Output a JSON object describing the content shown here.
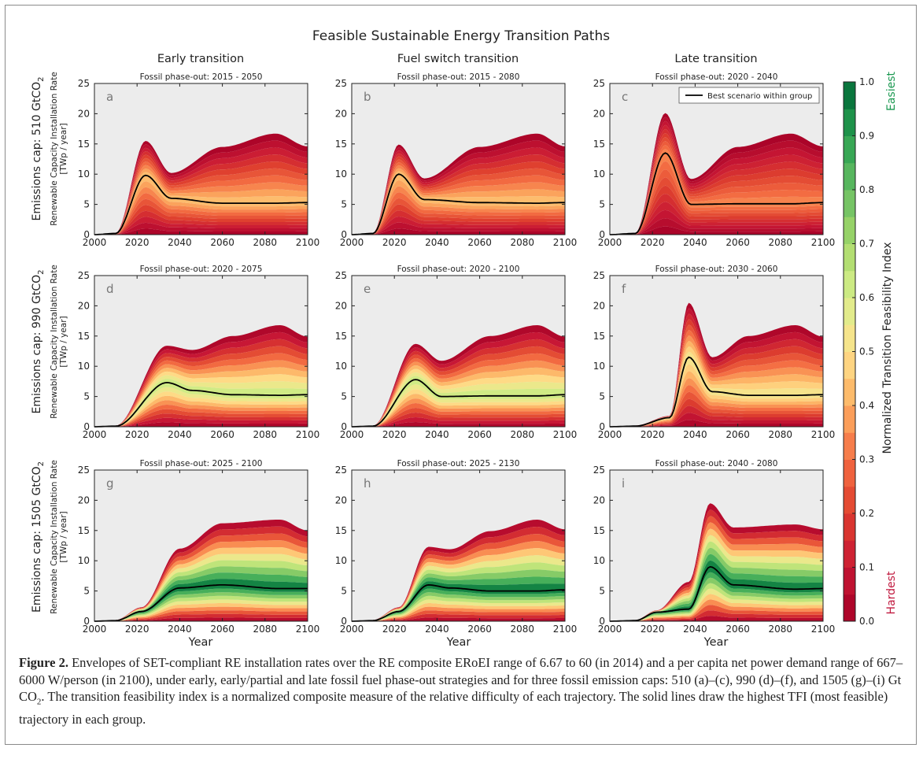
{
  "figure": {
    "title": "Feasible Sustainable Energy Transition Paths",
    "columns": [
      "Early transition",
      "Fuel switch transition",
      "Late transition"
    ],
    "rows": [
      {
        "label": "Emissions cap: 510 GtCO",
        "sub": "2"
      },
      {
        "label": "Emissions cap: 990 GtCO",
        "sub": "2"
      },
      {
        "label": "Emissions cap: 1505 GtCO",
        "sub": "2"
      }
    ],
    "ylabel_line1": "Renewable Capacity Installation Rate",
    "ylabel_line2": "[TWp / year]",
    "xlabel": "Year",
    "legend_label": "Best scenario within group",
    "colorbar": {
      "label": "Normalized Transition Feasibility Index",
      "top_label": "Easiest",
      "bottom_label": "Hardest",
      "top_color": "#1a9850",
      "bottom_color": "#c0173d",
      "ticks": [
        "0.0",
        "0.1",
        "0.2",
        "0.3",
        "0.4",
        "0.5",
        "0.6",
        "0.7",
        "0.8",
        "0.9",
        "1.0"
      ]
    }
  },
  "caption": {
    "label": "Figure 2.",
    "text_before": " Envelopes of SET-compliant RE installation rates over the RE composite ERoEI range of 6.67 to 60 (in 2014) and a per capita net power demand range of 667–6000 W/person (in 2100), under early, early/partial and late fossil fuel phase-out strategies and for three fossil emission caps: 510 (a)–(c), 990 (d)–(f), and 1505 (g)–(i) Gt CO",
    "sub": "2",
    "text_after": ". The transition feasibility index is a normalized composite measure of the relative difficulty of each trajectory. The solid lines draw the highest TFI (most feasible) trajectory in each group."
  },
  "chart_data": [
    {
      "id": "a",
      "type": "area",
      "title": "Fossil phase-out: 2015 - 2050",
      "xlim": [
        2000,
        2100
      ],
      "ylim": [
        0,
        25
      ],
      "xticks": [
        "2000",
        "2020",
        "2040",
        "2060",
        "2080",
        "2100"
      ],
      "yticks": [
        "0",
        "5",
        "10",
        "15",
        "20",
        "25"
      ],
      "grid": false,
      "legend": null,
      "x": [
        2000,
        2010,
        2024,
        2036,
        2060,
        2085,
        2100
      ],
      "upper": [
        0,
        0.3,
        15.5,
        10.2,
        14.5,
        16.7,
        14.6
      ],
      "lower": [
        0,
        0,
        0,
        0,
        0,
        0,
        0
      ],
      "best": [
        0,
        0.2,
        9.8,
        6,
        5.2,
        5.2,
        5.3
      ],
      "envelope_max_tfi": 0.45
    },
    {
      "id": "b",
      "type": "area",
      "title": "Fossil phase-out: 2015 - 2080",
      "xlim": [
        2000,
        2100
      ],
      "ylim": [
        0,
        25
      ],
      "xticks": [
        "2000",
        "2020",
        "2040",
        "2060",
        "2080",
        "2100"
      ],
      "yticks": [
        "0",
        "5",
        "10",
        "15",
        "20",
        "25"
      ],
      "grid": false,
      "legend": null,
      "x": [
        2000,
        2010,
        2022,
        2034,
        2060,
        2087,
        2100
      ],
      "upper": [
        0,
        0.3,
        14.9,
        9.3,
        14.5,
        16.7,
        14.6
      ],
      "lower": [
        0,
        0,
        0,
        0,
        0,
        0,
        0
      ],
      "best": [
        0,
        0.2,
        10,
        5.8,
        5.3,
        5.2,
        5.3
      ],
      "envelope_max_tfi": 0.45
    },
    {
      "id": "c",
      "type": "area",
      "title": "Fossil phase-out: 2020 - 2040",
      "xlim": [
        2000,
        2100
      ],
      "ylim": [
        0,
        25
      ],
      "xticks": [
        "2000",
        "2020",
        "2040",
        "2060",
        "2080",
        "2100"
      ],
      "yticks": [
        "0",
        "5",
        "10",
        "15",
        "20",
        "25"
      ],
      "grid": false,
      "legend": "top-right",
      "x": [
        2000,
        2012,
        2026,
        2038,
        2060,
        2085,
        2100
      ],
      "upper": [
        0,
        0.3,
        20.1,
        9.2,
        14.5,
        16.7,
        14.6
      ],
      "lower": [
        0,
        0,
        0,
        0,
        0,
        0,
        0
      ],
      "best": [
        0,
        0.2,
        13.5,
        5,
        5.1,
        5.1,
        5.3
      ],
      "envelope_max_tfi": 0.35
    },
    {
      "id": "d",
      "type": "area",
      "title": "Fossil phase-out: 2020 - 2075",
      "xlim": [
        2000,
        2100
      ],
      "ylim": [
        0,
        25
      ],
      "xticks": [
        "2000",
        "2020",
        "2040",
        "2060",
        "2080",
        "2100"
      ],
      "yticks": [
        "0",
        "5",
        "10",
        "15",
        "20",
        "25"
      ],
      "grid": false,
      "legend": null,
      "x": [
        2000,
        2010,
        2034,
        2046,
        2065,
        2087,
        2100
      ],
      "upper": [
        0,
        0.2,
        13.4,
        12.7,
        15,
        16.8,
        14.9
      ],
      "lower": [
        0,
        0,
        0,
        0,
        0,
        0,
        0
      ],
      "best": [
        0,
        0.1,
        7.3,
        6,
        5.3,
        5.2,
        5.3
      ],
      "envelope_max_tfi": 0.65
    },
    {
      "id": "e",
      "type": "area",
      "title": "Fossil phase-out: 2020 - 2100",
      "xlim": [
        2000,
        2100
      ],
      "ylim": [
        0,
        25
      ],
      "xticks": [
        "2000",
        "2020",
        "2040",
        "2060",
        "2080",
        "2100"
      ],
      "yticks": [
        "0",
        "5",
        "10",
        "15",
        "20",
        "25"
      ],
      "grid": false,
      "legend": null,
      "x": [
        2000,
        2010,
        2030,
        2042,
        2065,
        2087,
        2100
      ],
      "upper": [
        0,
        0.2,
        13.7,
        10.9,
        15,
        16.8,
        14.9
      ],
      "lower": [
        0,
        0,
        0,
        0,
        0,
        0,
        0
      ],
      "best": [
        0,
        0.1,
        7.8,
        5,
        5.1,
        5.1,
        5.3
      ],
      "envelope_max_tfi": 0.65
    },
    {
      "id": "f",
      "type": "area",
      "title": "Fossil phase-out: 2030 - 2060",
      "xlim": [
        2000,
        2100
      ],
      "ylim": [
        0,
        25
      ],
      "xticks": [
        "2000",
        "2020",
        "2040",
        "2060",
        "2080",
        "2100"
      ],
      "yticks": [
        "0",
        "5",
        "10",
        "15",
        "20",
        "25"
      ],
      "grid": false,
      "legend": null,
      "x": [
        2000,
        2012,
        2028,
        2037,
        2048,
        2065,
        2087,
        2100
      ],
      "upper": [
        0,
        0.2,
        1.8,
        20.5,
        11.5,
        15,
        16.8,
        14.9
      ],
      "lower": [
        0,
        0,
        0,
        0,
        0,
        0,
        0,
        0
      ],
      "best": [
        0,
        0.1,
        1.5,
        11.5,
        5.8,
        5.2,
        5.2,
        5.3
      ],
      "envelope_max_tfi": 0.55
    },
    {
      "id": "g",
      "type": "area",
      "title": "Fossil phase-out: 2025 - 2100",
      "xlim": [
        2000,
        2100
      ],
      "ylim": [
        0,
        25
      ],
      "xticks": [
        "2000",
        "2020",
        "2040",
        "2060",
        "2080",
        "2100"
      ],
      "yticks": [
        "0",
        "5",
        "10",
        "15",
        "20",
        "25"
      ],
      "grid": false,
      "legend": null,
      "x": [
        2000,
        2010,
        2022,
        2040,
        2060,
        2087,
        2100
      ],
      "upper": [
        0,
        0.2,
        2.3,
        12,
        16.2,
        16.8,
        15
      ],
      "lower": [
        0,
        0,
        0,
        0,
        0,
        0,
        0
      ],
      "best": [
        0,
        0.1,
        1.6,
        5.5,
        6,
        5.4,
        5.4
      ],
      "envelope_max_tfi": 1.0
    },
    {
      "id": "h",
      "type": "area",
      "title": "Fossil phase-out: 2025 - 2130",
      "xlim": [
        2000,
        2100
      ],
      "ylim": [
        0,
        25
      ],
      "xticks": [
        "2000",
        "2020",
        "2040",
        "2060",
        "2080",
        "2100"
      ],
      "yticks": [
        "0",
        "5",
        "10",
        "15",
        "20",
        "25"
      ],
      "grid": false,
      "legend": null,
      "x": [
        2000,
        2010,
        2022,
        2036,
        2046,
        2065,
        2087,
        2100
      ],
      "upper": [
        0,
        0.2,
        2.3,
        12.3,
        11.9,
        14.9,
        16.8,
        15.2
      ],
      "lower": [
        0,
        0,
        0,
        0,
        0,
        0,
        0,
        0
      ],
      "best": [
        0,
        0.1,
        1.6,
        6,
        5.5,
        5,
        5,
        5.2
      ],
      "envelope_max_tfi": 1.0
    },
    {
      "id": "i",
      "type": "area",
      "title": "Fossil phase-out: 2040 - 2080",
      "xlim": [
        2000,
        2100
      ],
      "ylim": [
        0,
        25
      ],
      "xticks": [
        "2000",
        "2020",
        "2040",
        "2060",
        "2080",
        "2100"
      ],
      "yticks": [
        "0",
        "5",
        "10",
        "15",
        "20",
        "25"
      ],
      "grid": false,
      "legend": null,
      "x": [
        2000,
        2012,
        2022,
        2037,
        2047,
        2058,
        2087,
        2100
      ],
      "upper": [
        0,
        0.2,
        1.8,
        6.5,
        19.5,
        15.5,
        16,
        15.2
      ],
      "lower": [
        0,
        0,
        0,
        0,
        0,
        0,
        0,
        0
      ],
      "best": [
        0,
        0.1,
        1.5,
        2,
        9,
        6,
        5.3,
        5.4
      ],
      "envelope_max_tfi": 1.0
    }
  ]
}
